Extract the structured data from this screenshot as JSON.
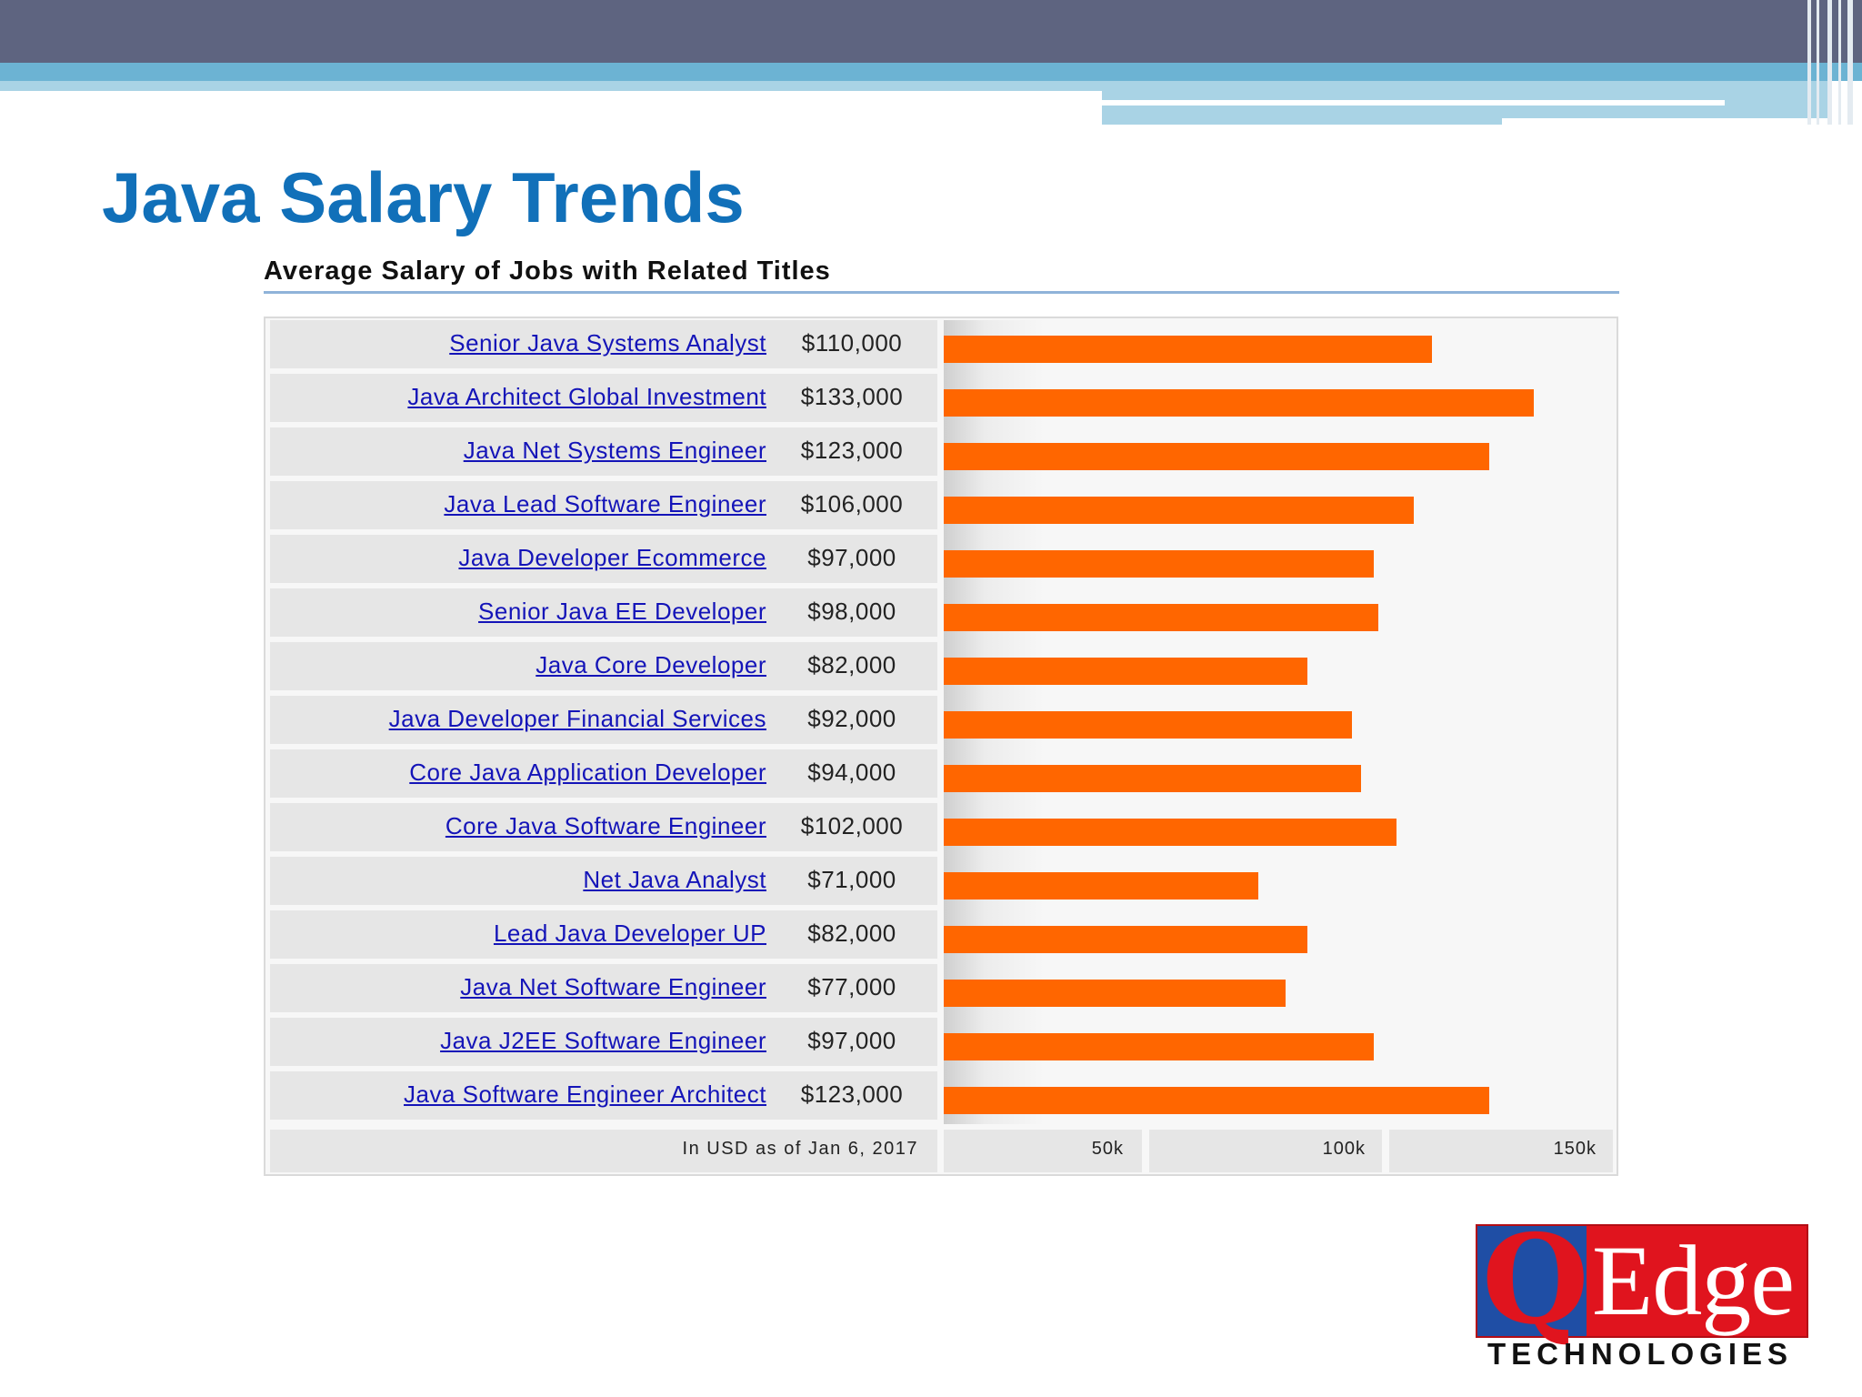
{
  "slide": {
    "title": "Java Salary Trends"
  },
  "logo": {
    "q": "Q",
    "edge": "Edge",
    "subtitle": "TECHNOLOGIES"
  },
  "colors": {
    "bar": "#ff6600",
    "title": "#1170b9",
    "link": "#1414b8"
  },
  "chart_data": {
    "type": "bar",
    "orientation": "horizontal",
    "title": "Average Salary of Jobs with Related Titles",
    "note": "In USD as of Jan 6, 2017",
    "categories": [
      "Senior Java Systems Analyst",
      "Java Architect Global Investment",
      "Java Net Systems Engineer",
      "Java Lead Software Engineer",
      "Java Developer Ecommerce",
      "Senior Java EE Developer",
      "Java Core Developer",
      "Java Developer Financial Services",
      "Core Java Application Developer",
      "Core Java Software Engineer",
      "Net Java Analyst",
      "Lead Java Developer UP",
      "Java Net Software Engineer",
      "Java J2EE Software Engineer",
      "Java Software Engineer Architect"
    ],
    "values": [
      110000,
      133000,
      123000,
      106000,
      97000,
      98000,
      82000,
      92000,
      94000,
      102000,
      71000,
      82000,
      77000,
      97000,
      123000
    ],
    "value_labels": [
      "$110,000",
      "$133,000",
      "$123,000",
      "$106,000",
      "$97,000",
      "$98,000",
      "$82,000",
      "$92,000",
      "$94,000",
      "$102,000",
      "$71,000",
      "$82,000",
      "$77,000",
      "$97,000",
      "$123,000"
    ],
    "ticks": [
      50000,
      100000,
      150000
    ],
    "tick_labels": [
      "50k",
      "100k",
      "150k"
    ],
    "xlim": [
      0,
      150000
    ],
    "legend": "none"
  }
}
